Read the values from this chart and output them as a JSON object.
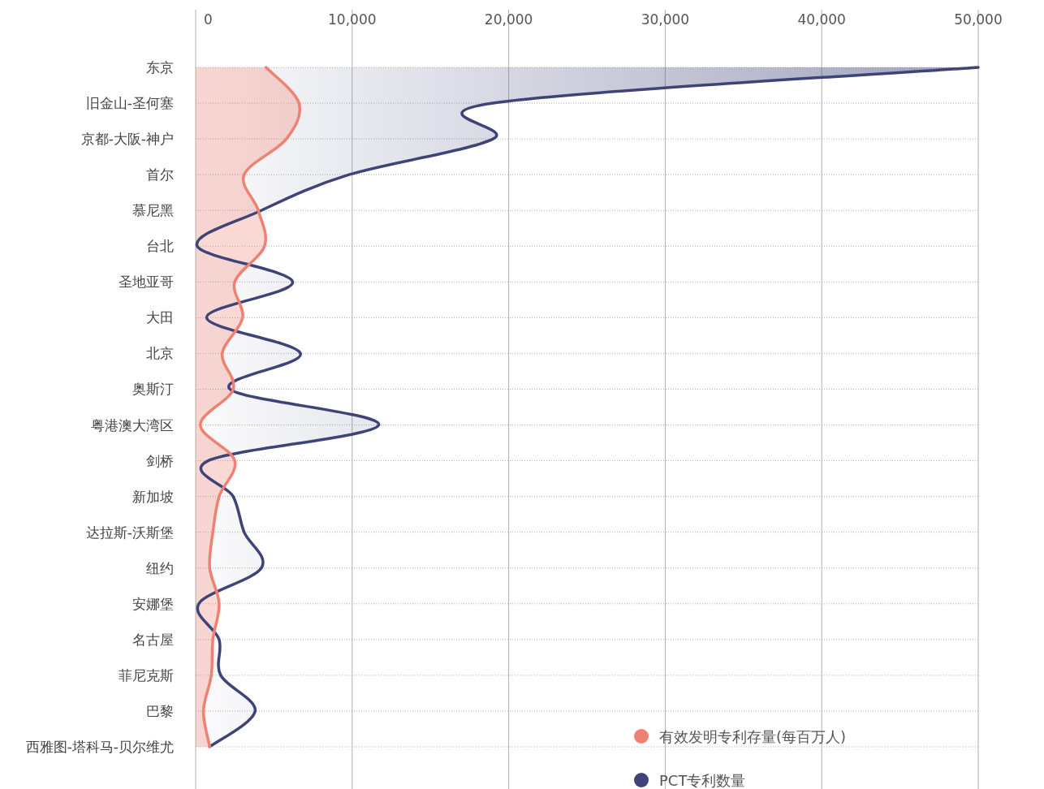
{
  "chart_data": {
    "type": "area",
    "orientation": "horizontal",
    "categories": [
      "东京",
      "旧金山-圣何塞",
      "京都-大阪-神户",
      "首尔",
      "慕尼黑",
      "台北",
      "圣地亚哥",
      "大田",
      "北京",
      "奥斯汀",
      "粤港澳大湾区",
      "剑桥",
      "新加坡",
      "达拉斯-沃斯堡",
      "纽约",
      "安娜堡",
      "名古屋",
      "菲尼克斯",
      "巴黎",
      "西雅图-塔科马-贝尔维尤"
    ],
    "series": [
      {
        "name": "PCT专利数量",
        "color": "#3f4478",
        "values": [
          50000,
          19000,
          19000,
          9800,
          4200,
          100,
          6200,
          700,
          6700,
          2200,
          11700,
          800,
          2400,
          3100,
          4200,
          200,
          1500,
          1600,
          3800,
          900
        ]
      },
      {
        "name": "有效发明专利存量(每百万人)",
        "color": "#ef8172",
        "values": [
          4500,
          6600,
          5800,
          3100,
          4000,
          4400,
          2500,
          3000,
          1700,
          2400,
          300,
          2500,
          1500,
          1100,
          900,
          1500,
          1100,
          1000,
          500,
          900
        ]
      }
    ],
    "xlim": [
      0,
      50000
    ],
    "xticks": [
      0,
      {
        "value": 10000,
        "label": "10,000"
      },
      {
        "value": 20000,
        "label": "20,000"
      },
      {
        "value": 30000,
        "label": "30,000"
      },
      {
        "value": 40000,
        "label": "40,000"
      },
      {
        "value": 50000,
        "label": "50,000"
      }
    ],
    "grid": true,
    "legend": "bottom right"
  }
}
